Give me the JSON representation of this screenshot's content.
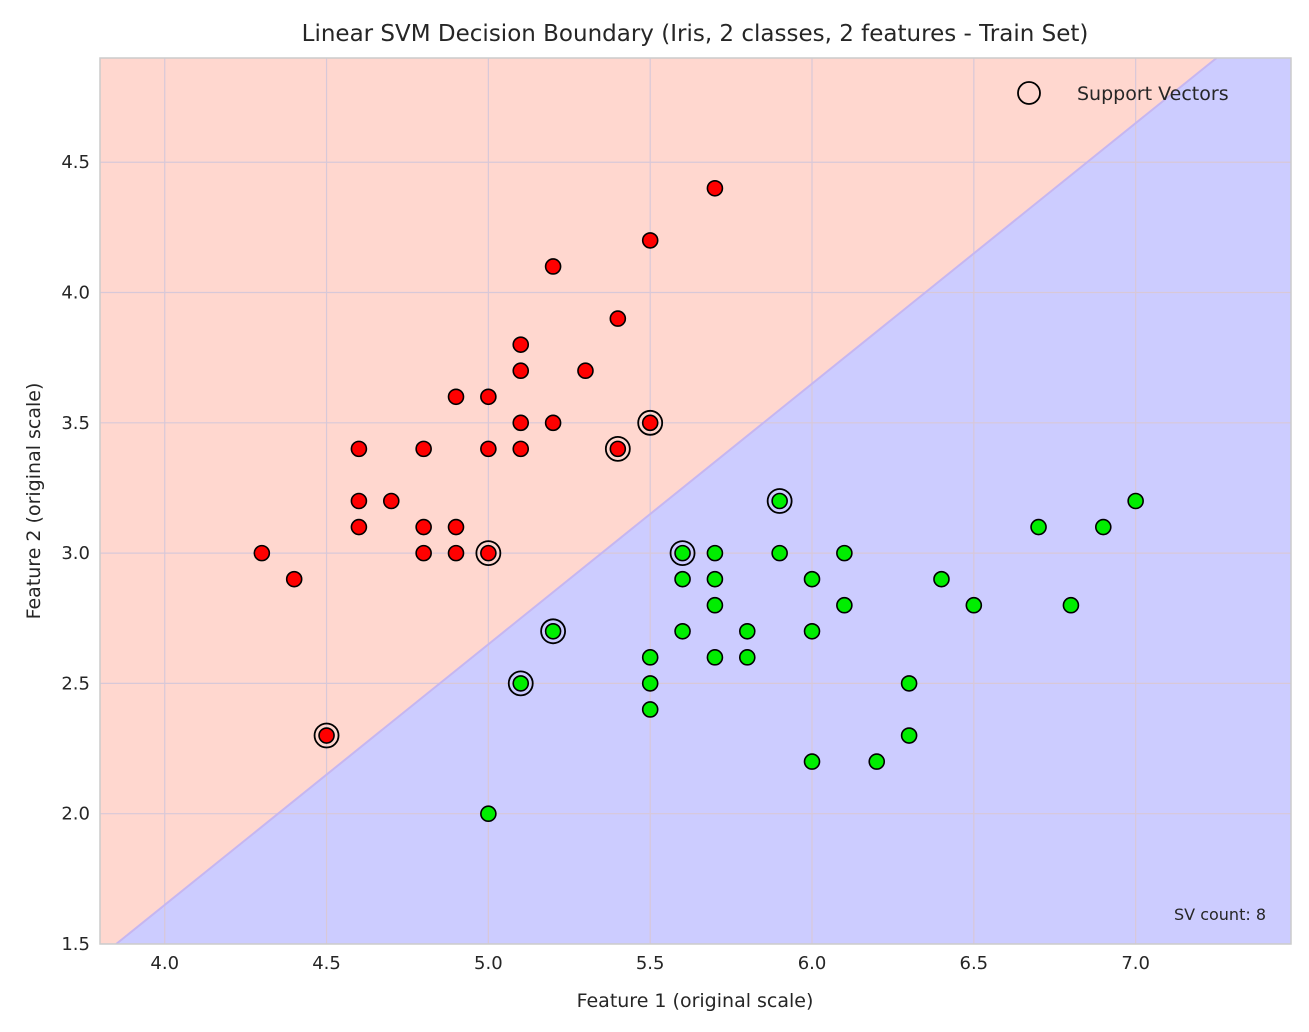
{
  "chart_data": {
    "type": "scatter",
    "title": "Linear SVM Decision Boundary (Iris, 2 classes, 2 features - Train Set)",
    "xlabel": "Feature 1 (original scale)",
    "ylabel": "Feature 2 (original scale)",
    "xlim": [
      3.8,
      7.48
    ],
    "ylim": [
      1.5,
      4.9
    ],
    "xticks": [
      "4.0",
      "4.5",
      "5.0",
      "5.5",
      "6.0",
      "6.5",
      "7.0"
    ],
    "yticks": [
      "1.5",
      "2.0",
      "2.5",
      "3.0",
      "3.5",
      "4.0",
      "4.5"
    ],
    "grid": true,
    "legend_position": "top-right",
    "legend": [
      "Support Vectors"
    ],
    "annotation": "SV count: 8",
    "decision_boundary": {
      "x": [
        3.85,
        7.25
      ],
      "y": [
        1.5,
        4.9
      ]
    },
    "colors": {
      "region_class_0": "#ffd7cf",
      "region_class_1": "#ccccff",
      "class_0": "#ff0000",
      "class_1": "#00ee00",
      "boundary": "#c6b6f0",
      "grid": "#d8c8d8"
    },
    "series": [
      {
        "points": [
          [
            4.3,
            3.0
          ],
          [
            4.4,
            2.9
          ],
          [
            4.5,
            2.3
          ],
          [
            4.6,
            3.4
          ],
          [
            4.6,
            3.2
          ],
          [
            4.6,
            3.1
          ],
          [
            4.7,
            3.2
          ],
          [
            4.8,
            3.4
          ],
          [
            4.8,
            3.1
          ],
          [
            4.8,
            3.0
          ],
          [
            4.9,
            3.6
          ],
          [
            4.9,
            3.1
          ],
          [
            4.9,
            3.0
          ],
          [
            5.0,
            3.6
          ],
          [
            5.0,
            3.4
          ],
          [
            5.0,
            3.0
          ],
          [
            5.1,
            3.8
          ],
          [
            5.1,
            3.7
          ],
          [
            5.1,
            3.5
          ],
          [
            5.1,
            3.4
          ],
          [
            5.2,
            4.1
          ],
          [
            5.2,
            3.5
          ],
          [
            5.3,
            3.7
          ],
          [
            5.4,
            3.9
          ],
          [
            5.4,
            3.4
          ],
          [
            5.5,
            4.2
          ],
          [
            5.5,
            3.5
          ],
          [
            5.7,
            4.4
          ]
        ]
      },
      {
        "points": [
          [
            5.0,
            2.0
          ],
          [
            5.1,
            2.5
          ],
          [
            5.2,
            2.7
          ],
          [
            5.5,
            2.6
          ],
          [
            5.5,
            2.5
          ],
          [
            5.5,
            2.4
          ],
          [
            5.6,
            3.0
          ],
          [
            5.6,
            2.9
          ],
          [
            5.6,
            2.7
          ],
          [
            5.7,
            3.0
          ],
          [
            5.7,
            2.9
          ],
          [
            5.7,
            2.8
          ],
          [
            5.7,
            2.6
          ],
          [
            5.8,
            2.7
          ],
          [
            5.8,
            2.6
          ],
          [
            5.9,
            3.2
          ],
          [
            5.9,
            3.0
          ],
          [
            6.0,
            2.9
          ],
          [
            6.0,
            2.7
          ],
          [
            6.0,
            2.2
          ],
          [
            6.1,
            3.0
          ],
          [
            6.1,
            2.8
          ],
          [
            6.2,
            2.2
          ],
          [
            6.3,
            2.5
          ],
          [
            6.3,
            2.3
          ],
          [
            6.4,
            2.9
          ],
          [
            6.5,
            2.8
          ],
          [
            6.7,
            3.1
          ],
          [
            6.8,
            2.8
          ],
          [
            6.9,
            3.1
          ],
          [
            7.0,
            3.2
          ]
        ]
      }
    ],
    "support_vectors": [
      [
        4.5,
        2.3
      ],
      [
        5.0,
        3.0
      ],
      [
        5.4,
        3.4
      ],
      [
        5.5,
        3.5
      ],
      [
        5.1,
        2.5
      ],
      [
        5.2,
        2.7
      ],
      [
        5.6,
        3.0
      ],
      [
        5.9,
        3.2
      ]
    ]
  }
}
